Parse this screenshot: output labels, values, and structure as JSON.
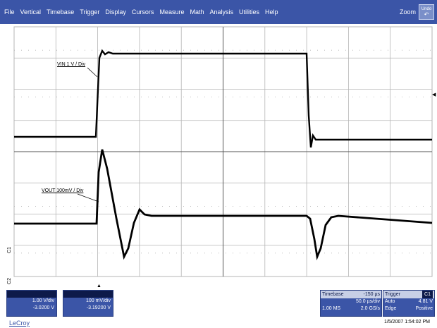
{
  "menu": {
    "items": [
      "File",
      "Vertical",
      "Timebase",
      "Trigger",
      "Display",
      "Cursors",
      "Measure",
      "Math",
      "Analysis",
      "Utilities",
      "Help"
    ],
    "zoom_label": "Zoom",
    "undo_label": "Undo"
  },
  "grid": {
    "divisions_x": 10,
    "divisions_y": 8,
    "grid_color": "#b5b5b5",
    "trace_color": "#000000"
  },
  "traces": {
    "vin_label": "VIN 1 V / Div",
    "vout_label": "VOUT 100mV / Div"
  },
  "markers": {
    "c1": "C1",
    "c2": "C2",
    "trigger": "▲",
    "right": "◀"
  },
  "channels": [
    {
      "vdiv": "1.00 V/div",
      "offset": "-3.0200 V"
    },
    {
      "vdiv": "100 mV/div",
      "offset": "-3.19200 V"
    }
  ],
  "timebase": {
    "title": "Timebase",
    "delay": "-150 µs",
    "tdiv": "50.0 µs/div",
    "samples": "1.00 MS",
    "rate": "2.0 GS/s"
  },
  "trigger": {
    "title": "Trigger",
    "badge": "C1",
    "mode": "Auto",
    "level": "4.81 V",
    "type": "Edge",
    "slope": "Positive"
  },
  "footer": {
    "logo": "LeCroy",
    "datetime": "1/5/2007 1:54:02 PM"
  },
  "colors": {
    "menu_bg": "#3b55a7",
    "panel_bg": "#3b55a7",
    "panel_dark": "#0d1a4a"
  }
}
